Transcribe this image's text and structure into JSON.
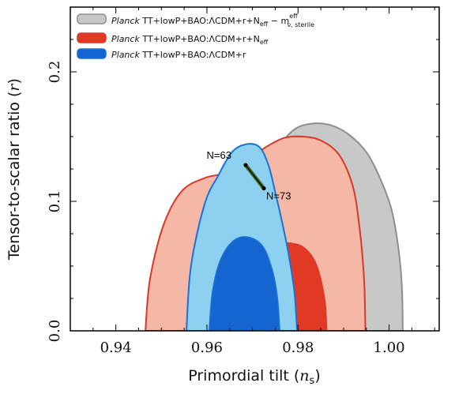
{
  "chart_data": {
    "type": "contour",
    "xlabel": "Primordial tilt (n_s)",
    "xlabel_main": "Primordial tilt (",
    "xlabel_sym": "n",
    "xlabel_sub": "s",
    "xlabel_close": ")",
    "ylabel": "Tensor-to-scalar ratio (r)",
    "ylabel_main": "Tensor-to-scalar ratio (",
    "ylabel_sym": "r",
    "ylabel_close": ")",
    "xlim": [
      0.93,
      1.011
    ],
    "ylim": [
      0.0,
      0.25
    ],
    "xticks": [
      0.94,
      0.96,
      0.98,
      1.0
    ],
    "xtick_labels": [
      "0.94",
      "0.96",
      "0.98",
      "1.00"
    ],
    "yticks": [
      0.0,
      0.1,
      0.2
    ],
    "ytick_labels": [
      "0.0",
      "0.1",
      "0.2"
    ],
    "legend_position": "top-left",
    "series": [
      {
        "name": "Planck TT+lowP+BAO:ΛCDM+r+N_eff − m^eff_ν,sterile",
        "legend": {
          "italic": "Planck",
          "main": " TT+lowP+BAO:ΛCDM+r+N",
          "sub1": "eff",
          "tail": " − m",
          "sup2": "eff",
          "sub2": "ν, sterile"
        },
        "fill_outer": "#c8c8c8",
        "fill_inner": "#a9a9a9",
        "edge": "#8e8e8e",
        "outer": [
          [
            0.9655,
            0.0
          ],
          [
            0.967,
            0.06
          ],
          [
            0.971,
            0.11
          ],
          [
            0.975,
            0.138
          ],
          [
            0.979,
            0.155
          ],
          [
            0.983,
            0.16
          ],
          [
            0.987,
            0.159
          ],
          [
            0.991,
            0.152
          ],
          [
            0.995,
            0.138
          ],
          [
            0.998,
            0.118
          ],
          [
            1.0005,
            0.094
          ],
          [
            1.002,
            0.065
          ],
          [
            1.0028,
            0.035
          ],
          [
            1.003,
            0.0
          ]
        ],
        "inner": []
      },
      {
        "name": "Planck TT+lowP+BAO:ΛCDM+r+N_eff",
        "legend": {
          "italic": "Planck",
          "main": " TT+lowP+BAO:ΛCDM+r+N",
          "sub1": "eff",
          "tail": "",
          "sup2": "",
          "sub2": ""
        },
        "fill_outer": "#f6b8a6",
        "fill_inner": "#e03a24",
        "edge": "#d8382a",
        "outer": [
          [
            0.9465,
            0.0
          ],
          [
            0.9475,
            0.04
          ],
          [
            0.9505,
            0.082
          ],
          [
            0.9545,
            0.108
          ],
          [
            0.9595,
            0.118
          ],
          [
            0.964,
            0.122
          ],
          [
            0.969,
            0.132
          ],
          [
            0.973,
            0.142
          ],
          [
            0.977,
            0.149
          ],
          [
            0.981,
            0.15
          ],
          [
            0.985,
            0.147
          ],
          [
            0.989,
            0.136
          ],
          [
            0.992,
            0.112
          ],
          [
            0.9935,
            0.08
          ],
          [
            0.9945,
            0.04
          ],
          [
            0.9948,
            0.0
          ]
        ],
        "inner": [
          [
            0.9695,
            0.0
          ],
          [
            0.9705,
            0.05
          ],
          [
            0.974,
            0.066
          ],
          [
            0.9775,
            0.068
          ],
          [
            0.981,
            0.065
          ],
          [
            0.9835,
            0.055
          ],
          [
            0.985,
            0.04
          ],
          [
            0.986,
            0.02
          ],
          [
            0.9863,
            0.0
          ]
        ]
      },
      {
        "name": "Planck TT+lowP+BAO:ΛCDM+r",
        "legend": {
          "italic": "Planck",
          "main": " TT+lowP+BAO:ΛCDM+r",
          "sub1": "",
          "tail": "",
          "sup2": "",
          "sub2": ""
        },
        "fill_outer": "#8ed0f0",
        "fill_inner": "#1565d0",
        "edge": "#1a72d6",
        "outer": [
          [
            0.9555,
            0.0
          ],
          [
            0.9565,
            0.05
          ],
          [
            0.9595,
            0.098
          ],
          [
            0.9625,
            0.12
          ],
          [
            0.9655,
            0.138
          ],
          [
            0.9685,
            0.144
          ],
          [
            0.9715,
            0.142
          ],
          [
            0.9735,
            0.128
          ],
          [
            0.975,
            0.107
          ],
          [
            0.9765,
            0.084
          ],
          [
            0.978,
            0.058
          ],
          [
            0.9792,
            0.03
          ],
          [
            0.9798,
            0.0
          ]
        ],
        "inner": [
          [
            0.9605,
            0.0
          ],
          [
            0.9612,
            0.03
          ],
          [
            0.963,
            0.055
          ],
          [
            0.966,
            0.07
          ],
          [
            0.9695,
            0.072
          ],
          [
            0.9725,
            0.064
          ],
          [
            0.9745,
            0.045
          ],
          [
            0.9755,
            0.025
          ],
          [
            0.976,
            0.0
          ]
        ]
      }
    ],
    "annotations": {
      "segment": {
        "from": [
          0.9685,
          0.128
        ],
        "to": [
          0.9725,
          0.11
        ],
        "color": "#1a1a1a",
        "highlight": "#4a7a2a"
      },
      "labels": [
        {
          "text": "N=63",
          "x": 0.9685,
          "y": 0.128,
          "anchor": "end",
          "dx": -18,
          "dy": -8
        },
        {
          "text": "N=73",
          "x": 0.9725,
          "y": 0.11,
          "anchor": "start",
          "dx": 3,
          "dy": 14
        }
      ]
    }
  }
}
